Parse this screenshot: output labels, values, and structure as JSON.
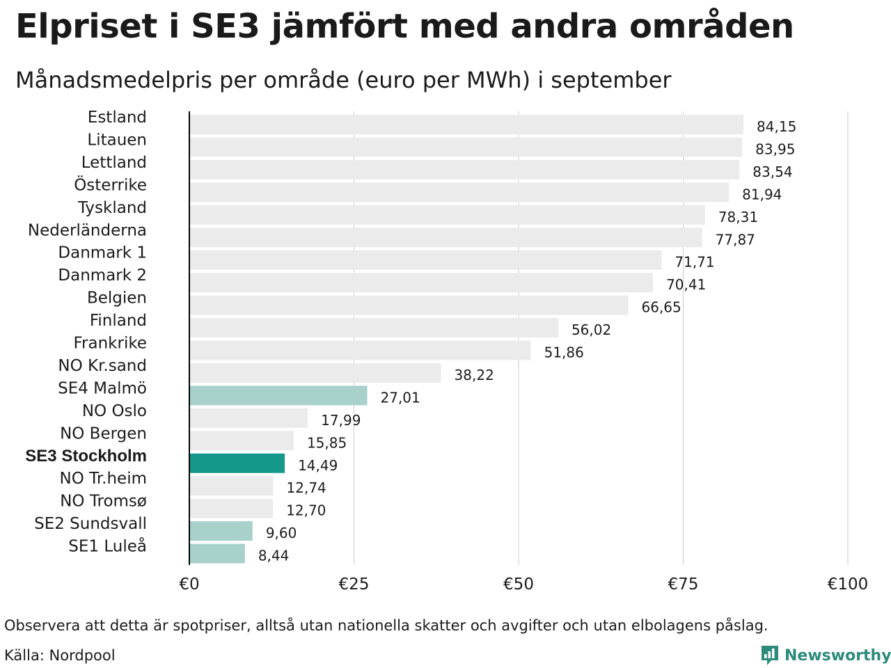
{
  "title": "Elpriset i SE3 jämfört med andra områden",
  "subtitle": "Månadsmedelpris per område (euro per MWh) i september",
  "footnote": "Observera att detta är spotpriser, alltså utan nationella skatter och avgifter och utan elbolagens påslag.",
  "source": "Källa: Nordpool",
  "logo": "Newsworthy",
  "colors": {
    "default_bar": "#ebebeb",
    "swedish_bar": "#a8d1cb",
    "highlight_bar": "#15978a",
    "grid": "#cccccc",
    "axis": "#000000",
    "text": "#1a1a1a",
    "brand": "#2e8b7c"
  },
  "chart_data": {
    "type": "bar",
    "orientation": "horizontal",
    "categories": [
      "Estland",
      "Litauen",
      "Lettland",
      "Österrike",
      "Tyskland",
      "Nederländerna",
      "Danmark 1",
      "Danmark 2",
      "Belgien",
      "Finland",
      "Frankrike",
      "NO Kr.sand",
      "SE4 Malmö",
      "NO Oslo",
      "NO Bergen",
      "SE3 Stockholm",
      "NO Tr.heim",
      "NO Tromsø",
      "SE2 Sundsvall",
      "SE1 Luleå"
    ],
    "values": [
      84.15,
      83.95,
      83.54,
      81.94,
      78.31,
      77.87,
      71.71,
      70.41,
      66.65,
      56.02,
      51.86,
      38.22,
      27.01,
      17.99,
      15.85,
      14.49,
      12.74,
      12.7,
      9.6,
      8.44
    ],
    "value_labels": [
      "84,15",
      "83,95",
      "83,54",
      "81,94",
      "78,31",
      "77,87",
      "71,71",
      "70,41",
      "66,65",
      "56,02",
      "51,86",
      "38,22",
      "27,01",
      "17,99",
      "15,85",
      "14,49",
      "12,74",
      "12,70",
      "9,60",
      "8,44"
    ],
    "highlight": "SE3 Stockholm",
    "swedish_areas": [
      "SE4 Malmö",
      "SE3 Stockholm",
      "SE2 Sundsvall",
      "SE1 Luleå"
    ],
    "xlim": [
      0,
      100
    ],
    "xticks": [
      0,
      25,
      50,
      75,
      100
    ],
    "xtick_labels": [
      "€0",
      "€25",
      "€50",
      "€75",
      "€100"
    ],
    "grid": true
  }
}
